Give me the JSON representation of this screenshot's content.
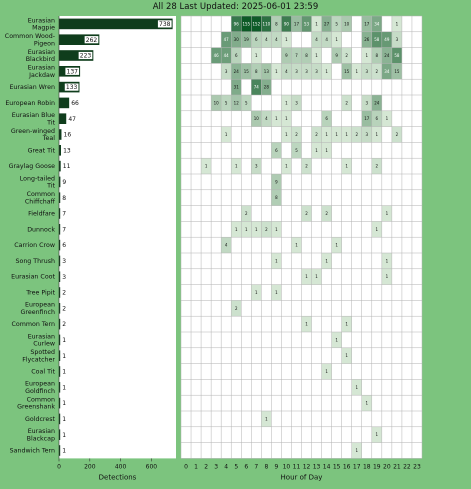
{
  "header": {
    "title": "All 28 Last Updated: 2025-06-01 23:59"
  },
  "colors": {
    "background": "#7cc47e",
    "bar": "#0f3d1c",
    "bar_label_bg": "#ffffff",
    "grid": "#b3b3b3",
    "highlight_hour": "#e6e600"
  },
  "chart_data": [
    {
      "type": "bar",
      "orientation": "horizontal",
      "categories": [
        "Eurasian Magpie",
        "Common Wood-Pigeon",
        "Eurasian Blackbird",
        "Eurasian Jackdaw",
        "Eurasian Wren",
        "European Robin",
        "Eurasian Blue Tit",
        "Green-winged Teal",
        "Great Tit",
        "Graylag Goose",
        "Long-tailed Tit",
        "Common Chiffchaff",
        "Fieldfare",
        "Dunnock",
        "Carrion Crow",
        "Song Thrush",
        "Eurasian Coot",
        "Tree Pipit",
        "European Greenfinch",
        "Common Tern",
        "Eurasian Curlew",
        "Spotted Flycatcher",
        "Coal Tit",
        "European Goldfinch",
        "Common Greenshank",
        "Goldcrest",
        "Eurasian Blackcap",
        "Sandwich Tern"
      ],
      "values": [
        738,
        262,
        223,
        137,
        133,
        66,
        47,
        16,
        13,
        11,
        9,
        8,
        7,
        7,
        6,
        3,
        3,
        2,
        2,
        2,
        1,
        1,
        1,
        1,
        1,
        1,
        1,
        1
      ],
      "xlabel": "Detections",
      "xticks": [
        "0",
        "200",
        "400",
        "600"
      ],
      "xlim": [
        0,
        760
      ]
    },
    {
      "type": "heatmap",
      "xlabel": "Hour of Day",
      "x": [
        "0",
        "1",
        "2",
        "3",
        "4",
        "5",
        "6",
        "7",
        "8",
        "9",
        "10",
        "11",
        "12",
        "13",
        "14",
        "15",
        "16",
        "17",
        "18",
        "19",
        "20",
        "21",
        "22",
        "23"
      ],
      "highlight_hour": "23",
      "rows": [
        {
          "name": "Eurasian Magpie",
          "cells": {
            "5": 96,
            "6": 155,
            "7": 152,
            "8": 110,
            "9": 8,
            "10": 90,
            "11": 17,
            "12": 53,
            "13": 1,
            "14": 27,
            "15": 5,
            "16": 10,
            "18": 17,
            "19": 34,
            "21": 1
          }
        },
        {
          "name": "Common Wood-Pigeon",
          "cells": {
            "4": 47,
            "5": 30,
            "6": 19,
            "7": 6,
            "8": 4,
            "9": 4,
            "10": 1,
            "13": 4,
            "14": 4,
            "15": 1,
            "18": 26,
            "19": 58,
            "20": 49,
            "21": 3
          }
        },
        {
          "name": "Eurasian Blackbird",
          "cells": {
            "3": 46,
            "4": 44,
            "5": 6,
            "7": 1,
            "10": 9,
            "11": 7,
            "12": 8,
            "13": 1,
            "15": 9,
            "16": 2,
            "18": 1,
            "19": 8,
            "20": 24,
            "21": 58
          }
        },
        {
          "name": "Eurasian Jackdaw",
          "cells": {
            "4": 3,
            "5": 24,
            "6": 15,
            "7": 8,
            "8": 13,
            "9": 1,
            "10": 4,
            "11": 3,
            "12": 3,
            "13": 3,
            "14": 1,
            "16": 15,
            "17": 1,
            "18": 3,
            "19": 2,
            "20": 34,
            "21": 15
          }
        },
        {
          "name": "Eurasian Wren",
          "cells": {
            "5": 31,
            "7": 74,
            "8": 28
          }
        },
        {
          "name": "European Robin",
          "cells": {
            "3": 10,
            "4": 5,
            "5": 12,
            "6": 5,
            "10": 1,
            "11": 3,
            "16": 2,
            "18": 3,
            "19": 24
          }
        },
        {
          "name": "Eurasian Blue Tit",
          "cells": {
            "7": 10,
            "8": 4,
            "9": 1,
            "10": 1,
            "14": 6,
            "18": 17,
            "19": 6,
            "20": 1
          }
        },
        {
          "name": "Green-winged Teal",
          "cells": {
            "4": 1,
            "10": 1,
            "11": 2,
            "13": 2,
            "14": 1,
            "15": 1,
            "16": 1,
            "17": 2,
            "18": 3,
            "19": 1,
            "21": 2
          }
        },
        {
          "name": "Great Tit",
          "cells": {
            "9": 6,
            "11": 5,
            "13": 1,
            "14": 1
          }
        },
        {
          "name": "Graylag Goose",
          "cells": {
            "2": 1,
            "5": 1,
            "7": 3,
            "10": 1,
            "12": 2,
            "16": 1,
            "19": 2
          }
        },
        {
          "name": "Long-tailed Tit",
          "cells": {
            "9": 9
          }
        },
        {
          "name": "Common Chiffchaff",
          "cells": {
            "9": 8
          }
        },
        {
          "name": "Fieldfare",
          "cells": {
            "6": 2,
            "12": 2,
            "14": 2,
            "20": 1
          }
        },
        {
          "name": "Dunnock",
          "cells": {
            "5": 1,
            "6": 1,
            "7": 1,
            "8": 2,
            "9": 1,
            "19": 1
          }
        },
        {
          "name": "Carrion Crow",
          "cells": {
            "4": 4,
            "11": 1,
            "15": 1
          }
        },
        {
          "name": "Song Thrush",
          "cells": {
            "9": 1,
            "14": 1,
            "20": 1
          }
        },
        {
          "name": "Eurasian Coot",
          "cells": {
            "12": 1,
            "13": 1,
            "20": 1
          }
        },
        {
          "name": "Tree Pipit",
          "cells": {
            "7": 1,
            "9": 1
          }
        },
        {
          "name": "European Greenfinch",
          "cells": {
            "5": 2
          }
        },
        {
          "name": "Common Tern",
          "cells": {
            "12": 1,
            "16": 1
          }
        },
        {
          "name": "Eurasian Curlew",
          "cells": {
            "15": 1
          }
        },
        {
          "name": "Spotted Flycatcher",
          "cells": {
            "16": 1
          }
        },
        {
          "name": "Coal Tit",
          "cells": {
            "14": 1
          }
        },
        {
          "name": "European Goldfinch",
          "cells": {
            "17": 1
          }
        },
        {
          "name": "Common Greenshank",
          "cells": {
            "18": 1
          }
        },
        {
          "name": "Goldcrest",
          "cells": {
            "8": 1
          }
        },
        {
          "name": "Eurasian Blackcap",
          "cells": {
            "19": 1
          }
        },
        {
          "name": "Sandwich Tern",
          "cells": {
            "17": 1
          }
        }
      ]
    }
  ]
}
